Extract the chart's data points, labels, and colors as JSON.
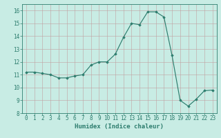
{
  "x": [
    0,
    1,
    2,
    3,
    4,
    5,
    6,
    7,
    8,
    9,
    10,
    11,
    12,
    13,
    14,
    15,
    16,
    17,
    18,
    19,
    20,
    21,
    22,
    23
  ],
  "y": [
    11.2,
    11.2,
    11.1,
    11.0,
    10.75,
    10.75,
    10.9,
    11.0,
    11.75,
    12.0,
    12.0,
    12.6,
    13.9,
    15.0,
    14.9,
    15.9,
    15.9,
    15.5,
    12.5,
    9.0,
    8.55,
    9.1,
    9.75,
    9.8
  ],
  "line_color": "#2d7d6e",
  "marker": "D",
  "marker_size": 1.8,
  "linewidth": 0.85,
  "xlim": [
    -0.5,
    23.5
  ],
  "ylim": [
    8,
    16.5
  ],
  "yticks": [
    8,
    9,
    10,
    11,
    12,
    13,
    14,
    15,
    16
  ],
  "xticks": [
    0,
    1,
    2,
    3,
    4,
    5,
    6,
    7,
    8,
    9,
    10,
    11,
    12,
    13,
    14,
    15,
    16,
    17,
    18,
    19,
    20,
    21,
    22,
    23
  ],
  "xlabel": "Humidex (Indice chaleur)",
  "bg_color": "#c8ece4",
  "grid_color": "#c0a0a0",
  "text_color": "#2d7d6e",
  "xlabel_fontsize": 6.5,
  "tick_fontsize": 5.5,
  "spine_color": "#2d7d6e"
}
